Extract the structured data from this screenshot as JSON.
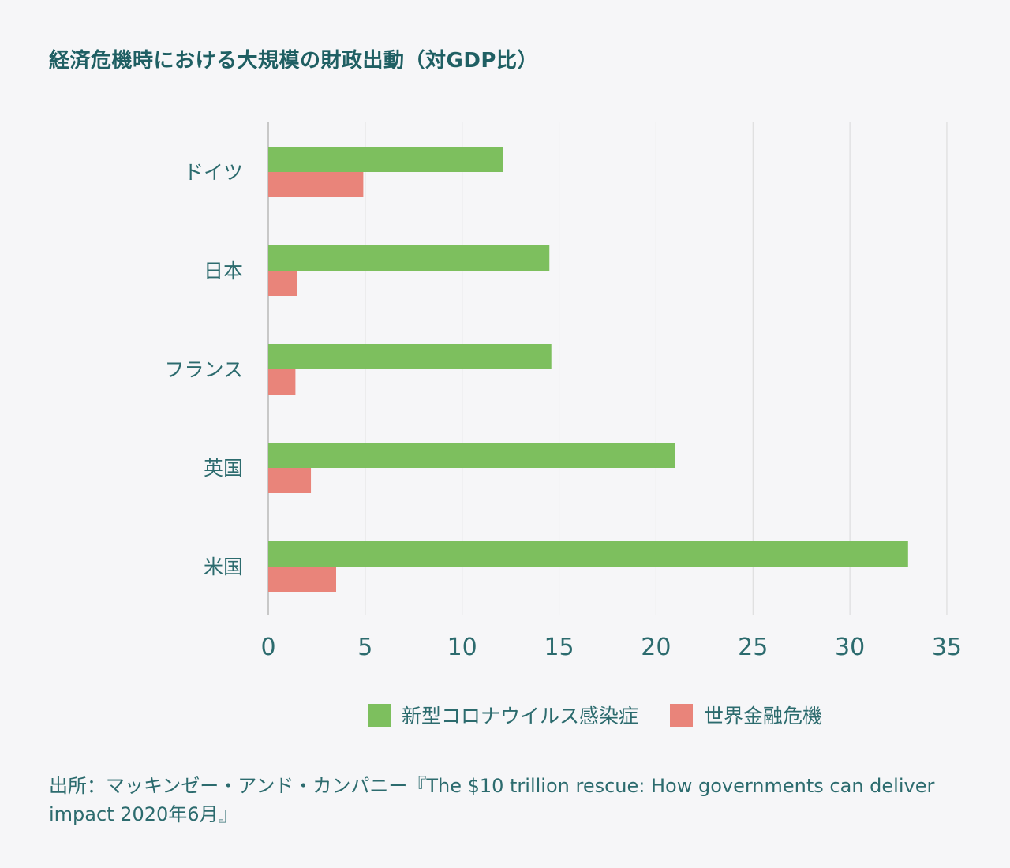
{
  "title": "経済危機時における大規模の財政出動（対GDP比）",
  "source": "出所：マッキンゼー・アンド・カンパニー『The $10 trillion rescue: How governments can deliver impact 2020年6月』",
  "colors": {
    "covid": "#7dbf5e",
    "gfc": "#e9847a",
    "grid": "#d9d9d9",
    "axis": "#b8b8b8",
    "text": "#2c6b6e"
  },
  "chart_data": {
    "type": "bar",
    "orientation": "horizontal",
    "title": "経済危機時における大規模の財政出動（対GDP比）",
    "categories": [
      "ドイツ",
      "日本",
      "フランス",
      "英国",
      "米国"
    ],
    "series": [
      {
        "name": "新型コロナウイルス感染症",
        "values": [
          12.1,
          14.5,
          14.6,
          21.0,
          33.0
        ]
      },
      {
        "name": "世界金融危機",
        "values": [
          4.9,
          1.5,
          1.4,
          2.2,
          3.5
        ]
      }
    ],
    "xlim": [
      0,
      35
    ],
    "xticks": [
      "0",
      "5",
      "10",
      "15",
      "20",
      "25",
      "30",
      "35"
    ],
    "grid": true,
    "legend": "bottom"
  }
}
